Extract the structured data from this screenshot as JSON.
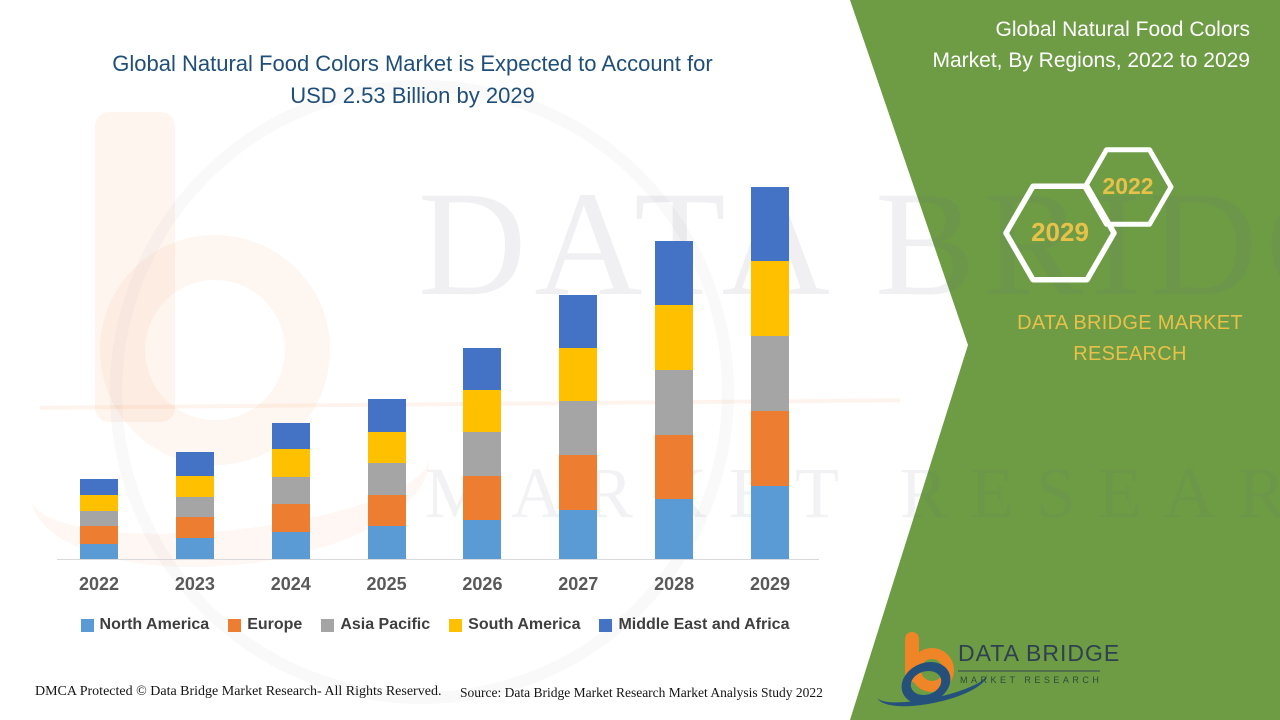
{
  "title": {
    "line1": "Global Natural Food Colors Market is Expected to Account for",
    "line2": "USD 2.53 Billion by 2029"
  },
  "panel": {
    "heading": "Global Natural Food Colors Market, By Regions, 2022 to 2029",
    "hexagon_front_label": "2029",
    "hexagon_back_label": "2022",
    "brand_line1": "DATA BRIDGE MARKET",
    "brand_line2": "RESEARCH",
    "logo_name": "DATA BRIDGE",
    "logo_subtext": "MARKET RESEARCH",
    "colors": {
      "panel_green": "#6d9c44",
      "accent_yellow": "#e8c14b",
      "heading_white": "#ffffff",
      "title_blue": "#1f4e79"
    }
  },
  "watermark": {
    "row1": "DATA BRIDGE",
    "row2": "MARKET RESEARCH"
  },
  "footer": {
    "dmca": "DMCA Protected © Data Bridge Market Research- All Rights Reserved.",
    "source": "Source: Data Bridge Market Research Market Analysis Study 2022"
  },
  "chart_data": {
    "type": "bar",
    "stacked": true,
    "title": "Global Natural Food Colors Market, By Regions, 2022 to 2029",
    "unit": "USD Billion",
    "categories": [
      "2022",
      "2023",
      "2024",
      "2025",
      "2026",
      "2027",
      "2028",
      "2029"
    ],
    "series": [
      {
        "name": "North America",
        "color": "#5B9BD5",
        "values": [
          0.11,
          0.15,
          0.19,
          0.23,
          0.27,
          0.34,
          0.41,
          0.5
        ]
      },
      {
        "name": "Europe",
        "color": "#ED7D31",
        "values": [
          0.12,
          0.14,
          0.19,
          0.21,
          0.3,
          0.37,
          0.44,
          0.51
        ]
      },
      {
        "name": "Asia Pacific",
        "color": "#A5A5A5",
        "values": [
          0.1,
          0.14,
          0.18,
          0.22,
          0.3,
          0.37,
          0.44,
          0.51
        ]
      },
      {
        "name": "South America",
        "color": "#FFC000",
        "values": [
          0.11,
          0.14,
          0.19,
          0.21,
          0.28,
          0.36,
          0.44,
          0.51
        ]
      },
      {
        "name": "Middle East and Africa",
        "color": "#4472C4",
        "values": [
          0.11,
          0.16,
          0.18,
          0.22,
          0.29,
          0.36,
          0.43,
          0.5
        ]
      }
    ],
    "totals": [
      0.55,
      0.73,
      0.93,
      1.09,
      1.44,
      1.8,
      2.16,
      2.53
    ],
    "ylim": [
      0,
      2.6
    ],
    "grid": false,
    "legend_position": "bottom"
  }
}
